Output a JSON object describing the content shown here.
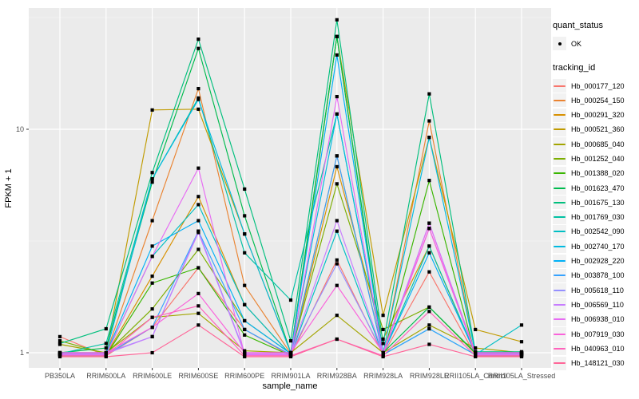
{
  "chart_data": {
    "type": "line",
    "xlabel": "sample_name",
    "ylabel": "FPKM + 1",
    "y_scale": "log10",
    "y_ticks": [
      1,
      10
    ],
    "y_minor_ticks": [
      3.162,
      31.62
    ],
    "ylim": [
      0.85,
      35
    ],
    "grid": "on",
    "legend_position": "right",
    "panel_bg": "#EBEBEB",
    "grid_color": "#FFFFFF",
    "point_color": "#000000",
    "point_shape": "filled-point",
    "categories": [
      "PB350LA",
      "RRIM600LA",
      "RRIM600LE",
      "RRIM600SE",
      "RRIM600PE",
      "RRIM901LA",
      "RRIM928BA",
      "RRIM928LA",
      "RRIM928LE",
      "RRII105LA_Control",
      "RRII105LA_Stressed"
    ],
    "series": [
      {
        "name": "Hb_000177_120",
        "color": "#F8766D",
        "values": [
          1.18,
          0.97,
          1.3,
          2.4,
          1.27,
          0.97,
          2.6,
          0.98,
          2.3,
          0.97,
          0.97
        ]
      },
      {
        "name": "Hb_000254_150",
        "color": "#EA8331",
        "values": [
          0.99,
          0.99,
          3.9,
          15.2,
          2.0,
          0.99,
          7.6,
          0.99,
          10.9,
          1.0,
          0.99
        ]
      },
      {
        "name": "Hb_000291_320",
        "color": "#D89000",
        "values": [
          0.98,
          0.98,
          2.2,
          5.0,
          1.64,
          0.98,
          6.8,
          1.15,
          3.0,
          0.98,
          0.98
        ]
      },
      {
        "name": "Hb_000521_360",
        "color": "#C09B00",
        "values": [
          1.0,
          1.0,
          12.2,
          12.3,
          3.4,
          1.0,
          26.0,
          1.47,
          9.2,
          1.27,
          1.12
        ]
      },
      {
        "name": "Hb_000685_040",
        "color": "#A3A500",
        "values": [
          1.09,
          1.0,
          1.44,
          1.5,
          1.02,
          1.0,
          1.47,
          1.0,
          1.33,
          1.05,
          1.0
        ]
      },
      {
        "name": "Hb_001252_040",
        "color": "#7CAE00",
        "values": [
          1.13,
          0.99,
          1.57,
          2.9,
          1.39,
          0.99,
          5.7,
          1.27,
          1.6,
          0.99,
          0.99
        ]
      },
      {
        "name": "Hb_001388_020",
        "color": "#39B600",
        "values": [
          0.97,
          0.97,
          2.05,
          2.4,
          1.2,
          0.97,
          26.0,
          0.97,
          5.9,
          0.97,
          0.97
        ]
      },
      {
        "name": "Hb_001623_470",
        "color": "#00BB4E",
        "values": [
          1.0,
          1.05,
          5.8,
          23.0,
          4.1,
          1.0,
          26.0,
          1.0,
          1.6,
          1.0,
          1.0
        ]
      },
      {
        "name": "Hb_001675_130",
        "color": "#00BF7D",
        "values": [
          1.1,
          1.28,
          6.4,
          25.3,
          5.4,
          1.13,
          30.9,
          1.1,
          14.4,
          1.01,
          1.01
        ]
      },
      {
        "name": "Hb_001769_030",
        "color": "#00C1A3",
        "values": [
          0.99,
          1.1,
          6.0,
          13.8,
          2.8,
          1.72,
          11.7,
          0.99,
          3.0,
          0.99,
          0.99
        ]
      },
      {
        "name": "Hb_002542_090",
        "color": "#00BFC4",
        "values": [
          0.98,
          0.98,
          2.7,
          4.6,
          1.64,
          0.98,
          3.5,
          0.98,
          1.28,
          0.98,
          1.33
        ]
      },
      {
        "name": "Hb_002740_170",
        "color": "#00BAE0",
        "values": [
          1.0,
          1.0,
          6.0,
          13.6,
          3.4,
          1.0,
          11.7,
          1.0,
          9.2,
          1.0,
          1.0
        ]
      },
      {
        "name": "Hb_002928_220",
        "color": "#00B0F6",
        "values": [
          0.99,
          0.99,
          3.0,
          3.9,
          1.39,
          0.99,
          21.5,
          0.99,
          2.8,
          0.99,
          0.99
        ]
      },
      {
        "name": "Hb_003878_100",
        "color": "#35A2FF",
        "values": [
          0.98,
          0.98,
          1.3,
          3.5,
          1.27,
          0.98,
          7.6,
          0.98,
          1.28,
          0.98,
          0.98
        ]
      },
      {
        "name": "Hb_005618_110",
        "color": "#9590FF",
        "values": [
          1.0,
          1.0,
          1.18,
          3.5,
          1.0,
          1.0,
          2.5,
          1.0,
          3.8,
          1.0,
          1.0
        ]
      },
      {
        "name": "Hb_006569_110",
        "color": "#C77CFF",
        "values": [
          0.99,
          0.99,
          1.18,
          3.45,
          0.99,
          0.99,
          3.9,
          0.99,
          3.6,
          0.99,
          0.99
        ]
      },
      {
        "name": "Hb_006938_010",
        "color": "#E76BF3",
        "values": [
          0.98,
          0.98,
          2.7,
          6.7,
          0.98,
          0.98,
          14.0,
          0.98,
          3.8,
          0.98,
          0.98
        ]
      },
      {
        "name": "Hb_007919_030",
        "color": "#FA62DB",
        "values": [
          1.0,
          1.0,
          1.3,
          1.84,
          1.0,
          1.0,
          2.0,
          1.0,
          3.6,
          1.0,
          1.0
        ]
      },
      {
        "name": "Hb_040963_010",
        "color": "#FF62BC",
        "values": [
          0.97,
          0.97,
          1.44,
          1.62,
          0.97,
          0.97,
          1.15,
          0.97,
          1.53,
          0.97,
          0.97
        ]
      },
      {
        "name": "Hb_148121_030",
        "color": "#FF6598",
        "values": [
          0.96,
          0.96,
          1.0,
          1.33,
          0.96,
          0.96,
          1.15,
          0.96,
          1.09,
          0.96,
          0.96
        ]
      }
    ]
  },
  "legend": {
    "quant_status": {
      "title": "quant_status",
      "items": [
        {
          "label": "OK",
          "marker": "black-point-icon"
        }
      ]
    },
    "tracking_id": {
      "title": "tracking_id"
    }
  }
}
